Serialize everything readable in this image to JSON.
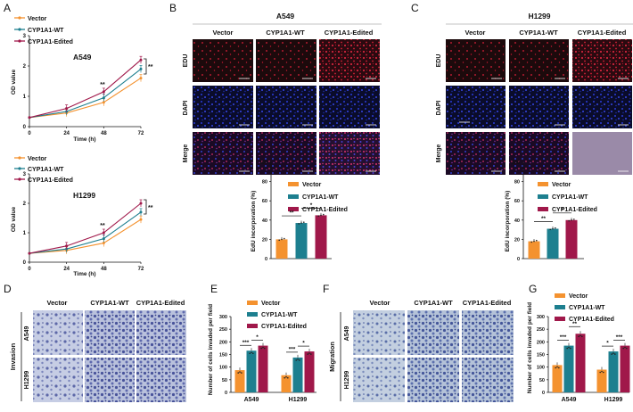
{
  "colors": {
    "vector": "#f4922f",
    "wt": "#1d7f8f",
    "edited": "#a0184a",
    "edu_bg": "#1c0a0c",
    "dapi_bg": "#0a0c2a",
    "merge_bg": "#1a0a24",
    "invasion_bg": "#c6cde4",
    "migration_bg": "#c3cfe0"
  },
  "icons": [
    "significance-bracket",
    "scale-bar",
    "legend-line-marker",
    "legend-square-swatch"
  ],
  "panels": {
    "A": {
      "letter": "A",
      "legend": [
        "Vector",
        "CYP1A1-WT",
        "CYP1A1-Edited"
      ],
      "top": {
        "title": "A549",
        "ylabel": "OD value",
        "xlabel": "Time (h)",
        "sig_48": "**",
        "sig_72": "**"
      },
      "bottom": {
        "title": "H1299",
        "ylabel": "OD value",
        "xlabel": "Time (h)",
        "sig_48": "**",
        "sig_72": "**"
      }
    },
    "B": {
      "letter": "B",
      "title": "A549",
      "col_headers": [
        "Vector",
        "CYP1A1-WT",
        "CYP1A1-Edited"
      ],
      "row_labels": [
        "EDU",
        "DAPI",
        "Merge"
      ],
      "legend": [
        "Vector",
        "CYP1A1-WT",
        "CYP1A1-Edited"
      ],
      "ylabel": "EdU incorporation (%)",
      "sig": [
        "**",
        "*"
      ]
    },
    "C": {
      "letter": "C",
      "title": "H1299",
      "col_headers": [
        "Vector",
        "CYP1A1-WT",
        "CYP1A1-Edited"
      ],
      "row_labels": [
        "EDU",
        "DAPI",
        "Merge"
      ],
      "legend": [
        "Vector",
        "CYP1A1-WT",
        "CYP1A1-Edited"
      ],
      "ylabel": "EdU incorporation (%)",
      "sig": [
        "**",
        "*"
      ]
    },
    "D": {
      "letter": "D",
      "col_headers": [
        "Vector",
        "CYP1A1-WT",
        "CYP1A1-Edited"
      ],
      "side_label": "Invasion",
      "row_labels": [
        "A549",
        "H1299"
      ]
    },
    "E": {
      "letter": "E",
      "legend": [
        "Vector",
        "CYP1A1-WT",
        "CYP1A1-Edited"
      ],
      "ylabel": "Number of cells invaded per field",
      "groups": [
        "A549",
        "H1299"
      ],
      "sig": [
        "***",
        "*",
        "***",
        "*"
      ]
    },
    "F": {
      "letter": "F",
      "col_headers": [
        "Vector",
        "CYP1A1-WT",
        "CYP1A1-Edited"
      ],
      "side_label": "Migration",
      "row_labels": [
        "A549",
        "H1299"
      ]
    },
    "G": {
      "letter": "G",
      "legend": [
        "Vector",
        "CYP1A1-WT",
        "CYP1A1-Edited"
      ],
      "ylabel": "Number of cells invaded per field",
      "groups": [
        "A549",
        "H1299"
      ],
      "sig": [
        "***",
        "**",
        "*",
        "***",
        "*"
      ]
    }
  },
  "chart_data": [
    {
      "id": "A-top",
      "type": "line",
      "title": "A549",
      "xlabel": "Time (h)",
      "ylabel": "OD value",
      "x": [
        0,
        24,
        48,
        72
      ],
      "xlim": [
        0,
        72
      ],
      "ylim": [
        0,
        3
      ],
      "xticks": [
        0,
        24,
        48,
        72
      ],
      "yticks": [
        0,
        1,
        2,
        3
      ],
      "series": [
        {
          "name": "Vector",
          "values": [
            0.3,
            0.45,
            0.8,
            1.6
          ]
        },
        {
          "name": "CYP1A1-WT",
          "values": [
            0.3,
            0.5,
            0.95,
            1.9
          ]
        },
        {
          "name": "CYP1A1-Edited",
          "values": [
            0.3,
            0.6,
            1.15,
            2.2
          ]
        }
      ]
    },
    {
      "id": "A-bottom",
      "type": "line",
      "title": "H1299",
      "xlabel": "Time (h)",
      "ylabel": "OD value",
      "x": [
        0,
        24,
        48,
        72
      ],
      "xlim": [
        0,
        72
      ],
      "ylim": [
        0,
        3
      ],
      "xticks": [
        0,
        24,
        48,
        72
      ],
      "yticks": [
        0,
        1,
        2,
        3
      ],
      "series": [
        {
          "name": "Vector",
          "values": [
            0.3,
            0.4,
            0.65,
            1.45
          ]
        },
        {
          "name": "CYP1A1-WT",
          "values": [
            0.3,
            0.45,
            0.8,
            1.7
          ]
        },
        {
          "name": "CYP1A1-Edited",
          "values": [
            0.3,
            0.55,
            1.0,
            2.0
          ]
        }
      ]
    },
    {
      "id": "B-bar",
      "type": "bar",
      "ylabel": "EdU incorporation (%)",
      "categories": [
        "Vector",
        "CYP1A1-WT",
        "CYP1A1-Edited"
      ],
      "values": [
        20,
        37,
        45
      ],
      "ylim": [
        0,
        100
      ],
      "yticks": [
        0,
        20,
        40,
        60,
        80,
        100
      ]
    },
    {
      "id": "C-bar",
      "type": "bar",
      "ylabel": "EdU incorporation (%)",
      "categories": [
        "Vector",
        "CYP1A1-WT",
        "CYP1A1-Edited"
      ],
      "values": [
        18,
        31,
        40
      ],
      "ylim": [
        0,
        100
      ],
      "yticks": [
        0,
        20,
        40,
        60,
        80,
        100
      ]
    },
    {
      "id": "E-bar",
      "type": "bar",
      "ylabel": "Number of cells invaded per field",
      "categories": [
        "A549",
        "H1299"
      ],
      "ylim": [
        0,
        300
      ],
      "yticks": [
        0,
        50,
        100,
        150,
        200,
        250,
        300
      ],
      "series": [
        {
          "name": "Vector",
          "values": [
            88,
            68
          ]
        },
        {
          "name": "CYP1A1-WT",
          "values": [
            165,
            138
          ]
        },
        {
          "name": "CYP1A1-Edited",
          "values": [
            185,
            162
          ]
        }
      ]
    },
    {
      "id": "G-bar",
      "type": "bar",
      "ylabel": "Number of cells invaded per field",
      "categories": [
        "A549",
        "H1299"
      ],
      "ylim": [
        0,
        300
      ],
      "yticks": [
        0,
        50,
        100,
        150,
        200,
        250,
        300
      ],
      "series": [
        {
          "name": "Vector",
          "values": [
            108,
            90
          ]
        },
        {
          "name": "CYP1A1-WT",
          "values": [
            185,
            162
          ]
        },
        {
          "name": "CYP1A1-Edited",
          "values": [
            232,
            185
          ]
        }
      ]
    }
  ]
}
